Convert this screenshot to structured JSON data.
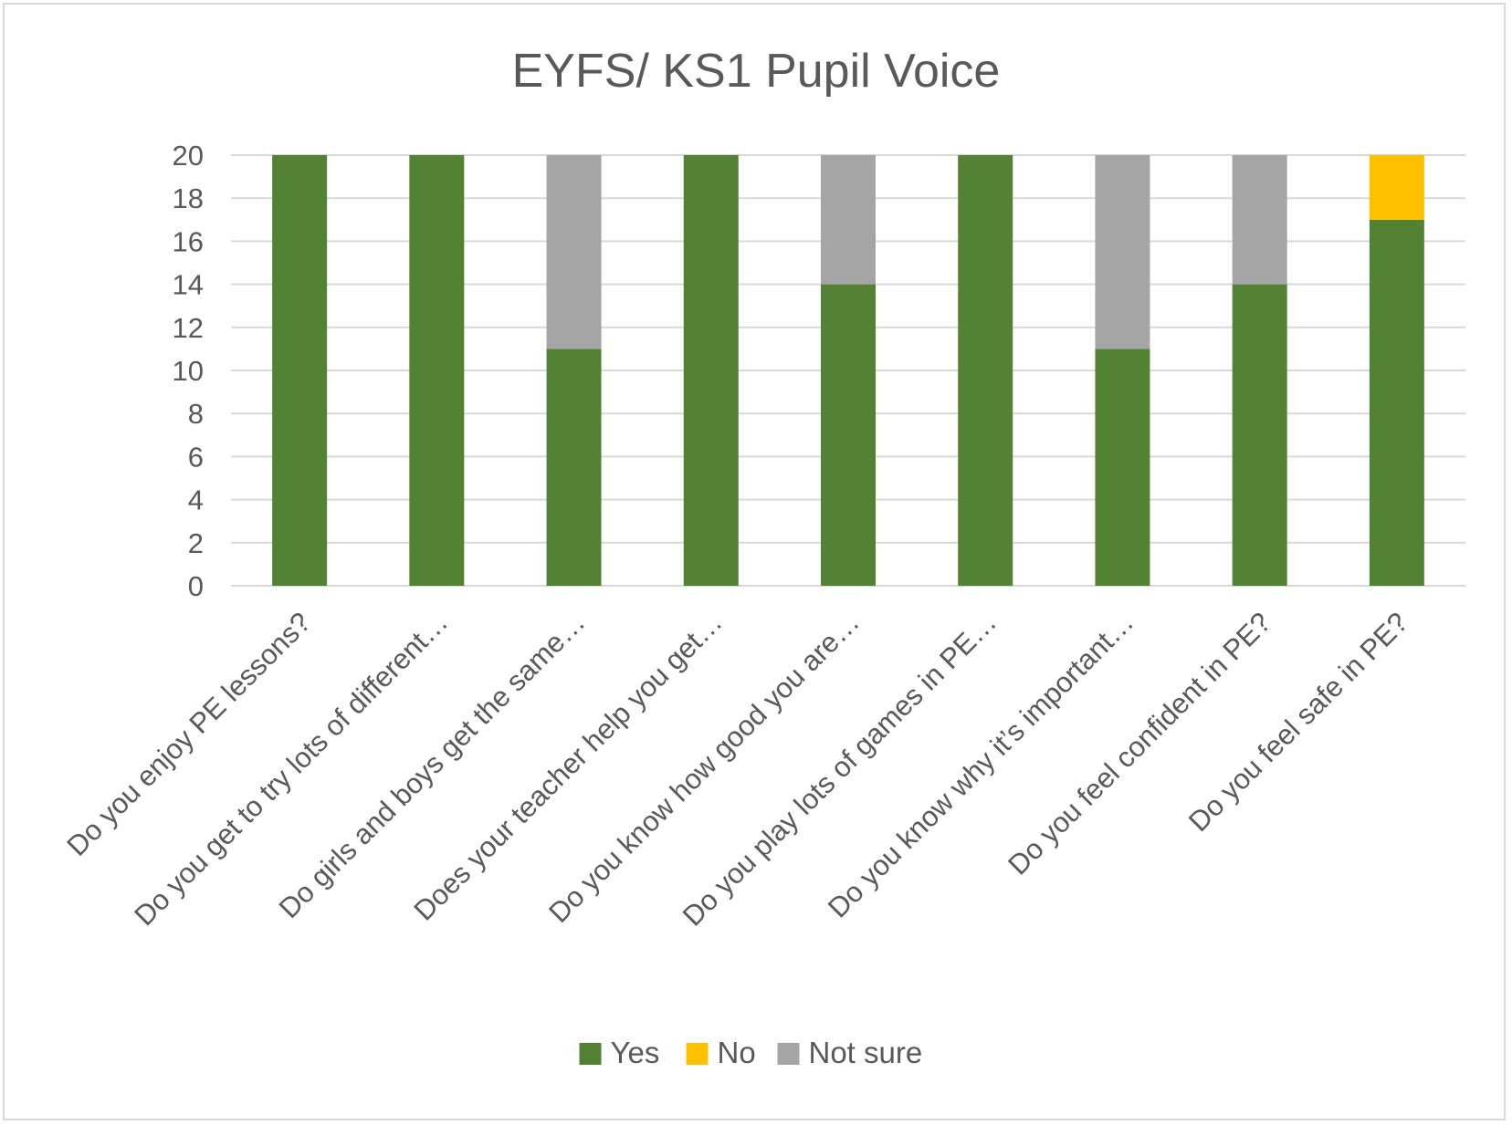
{
  "chart_data": {
    "type": "bar",
    "stacked": true,
    "title": "EYFS/ KS1 Pupil Voice",
    "xlabel": "",
    "ylabel": "",
    "ylim": [
      0,
      20
    ],
    "yticks": [
      "0",
      "2",
      "4",
      "6",
      "8",
      "10",
      "12",
      "14",
      "16",
      "18",
      "20"
    ],
    "grid": true,
    "legend_position": "bottom",
    "categories": [
      "Do you enjoy PE lessons?",
      "Do you get to try lots of different…",
      "Do girls and boys get the same…",
      "Does your teacher help you get…",
      "Do you know how good you are…",
      "Do you play lots of games in PE…",
      "Do you know why it’s important…",
      "Do you feel confident in PE?",
      "Do you feel safe in PE?"
    ],
    "series": [
      {
        "name": "Yes",
        "color": "#548235",
        "values": [
          20,
          20,
          11,
          20,
          14,
          20,
          11,
          14,
          17
        ]
      },
      {
        "name": "No",
        "color": "#FFC000",
        "values": [
          0,
          0,
          0,
          0,
          0,
          0,
          0,
          0,
          3
        ]
      },
      {
        "name": "Not sure",
        "color": "#A5A5A5",
        "values": [
          0,
          0,
          9,
          0,
          6,
          0,
          9,
          6,
          0
        ]
      }
    ]
  }
}
